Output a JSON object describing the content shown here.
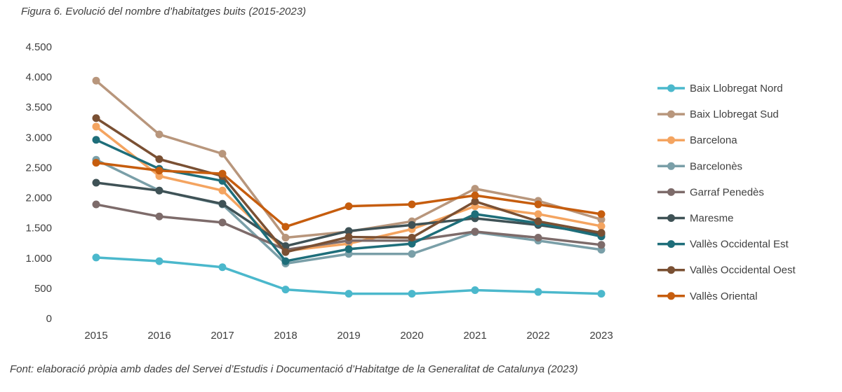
{
  "chart_data": {
    "type": "line",
    "title": "Figura 6. Evolució del nombre d’habitatges buits (2015-2023)",
    "source": "Font: elaboració pròpia amb dades del Servei d’Estudis i Documentació d’Habitatge de la Generalitat de Catalunya (2023)",
    "x": [
      "2015",
      "2016",
      "2017",
      "2018",
      "2019",
      "2020",
      "2021",
      "2022",
      "2023"
    ],
    "ylim": [
      0,
      4500
    ],
    "yticks": [
      0,
      500,
      1000,
      1500,
      2000,
      2500,
      3000,
      3500,
      4000,
      4500
    ],
    "ytick_labels": [
      "0",
      "500",
      "1.000",
      "1.500",
      "2.000",
      "2.500",
      "3.000",
      "3.500",
      "4.000",
      "4.500"
    ],
    "grid": false,
    "legend_position": "right",
    "series": [
      {
        "name": "Baix Llobregat Nord",
        "color": "#4BB8CC",
        "values": [
          1010,
          950,
          850,
          480,
          410,
          410,
          470,
          440,
          410
        ]
      },
      {
        "name": "Baix Llobregat Sud",
        "color": "#B8967C",
        "values": [
          3940,
          3050,
          2730,
          1340,
          1440,
          1610,
          2150,
          1950,
          1640
        ]
      },
      {
        "name": "Barcelona",
        "color": "#F4A460",
        "values": [
          3180,
          2360,
          2120,
          1120,
          1240,
          1480,
          1860,
          1730,
          1530
        ]
      },
      {
        "name": "Barcelonès",
        "color": "#7A9FA8",
        "values": [
          2630,
          2120,
          1890,
          910,
          1070,
          1070,
          1430,
          1290,
          1140
        ]
      },
      {
        "name": "Garraf Penedès",
        "color": "#7D6B6A",
        "values": [
          1890,
          1690,
          1590,
          1140,
          1290,
          1290,
          1440,
          1340,
          1220
        ]
      },
      {
        "name": "Maresme",
        "color": "#3F5256",
        "values": [
          2250,
          2120,
          1900,
          1200,
          1450,
          1550,
          1660,
          1550,
          1400
        ]
      },
      {
        "name": "Vallès Occidental Est",
        "color": "#1E6E7A",
        "values": [
          2960,
          2480,
          2280,
          950,
          1150,
          1240,
          1730,
          1580,
          1360
        ]
      },
      {
        "name": "Vallès Occidental Oest",
        "color": "#7A5033",
        "values": [
          3320,
          2640,
          2360,
          1100,
          1350,
          1340,
          1940,
          1610,
          1420
        ]
      },
      {
        "name": "Vallès Oriental",
        "color": "#C65D0E",
        "values": [
          2580,
          2450,
          2400,
          1520,
          1860,
          1890,
          2040,
          1890,
          1730
        ]
      }
    ]
  }
}
